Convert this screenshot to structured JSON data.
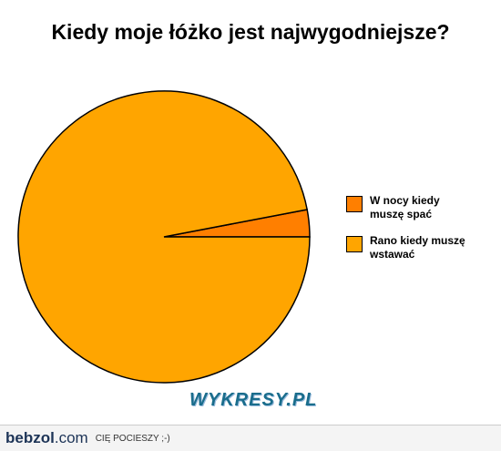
{
  "chart_data": {
    "type": "pie",
    "title": "Kiedy moje łóżko jest najwygodniejsze?",
    "categories": [
      "W nocy kiedy muszę spać",
      "Rano kiedy muszę wstawać"
    ],
    "values": [
      3,
      97
    ],
    "colors": [
      "#ff7f00",
      "#ffa500"
    ],
    "legend": "right"
  },
  "watermark": "WYKRESY.PL",
  "footer": {
    "brand": "bebzol",
    "domain": ".com",
    "tagline": "CIĘ POCIESZY ;-)"
  }
}
